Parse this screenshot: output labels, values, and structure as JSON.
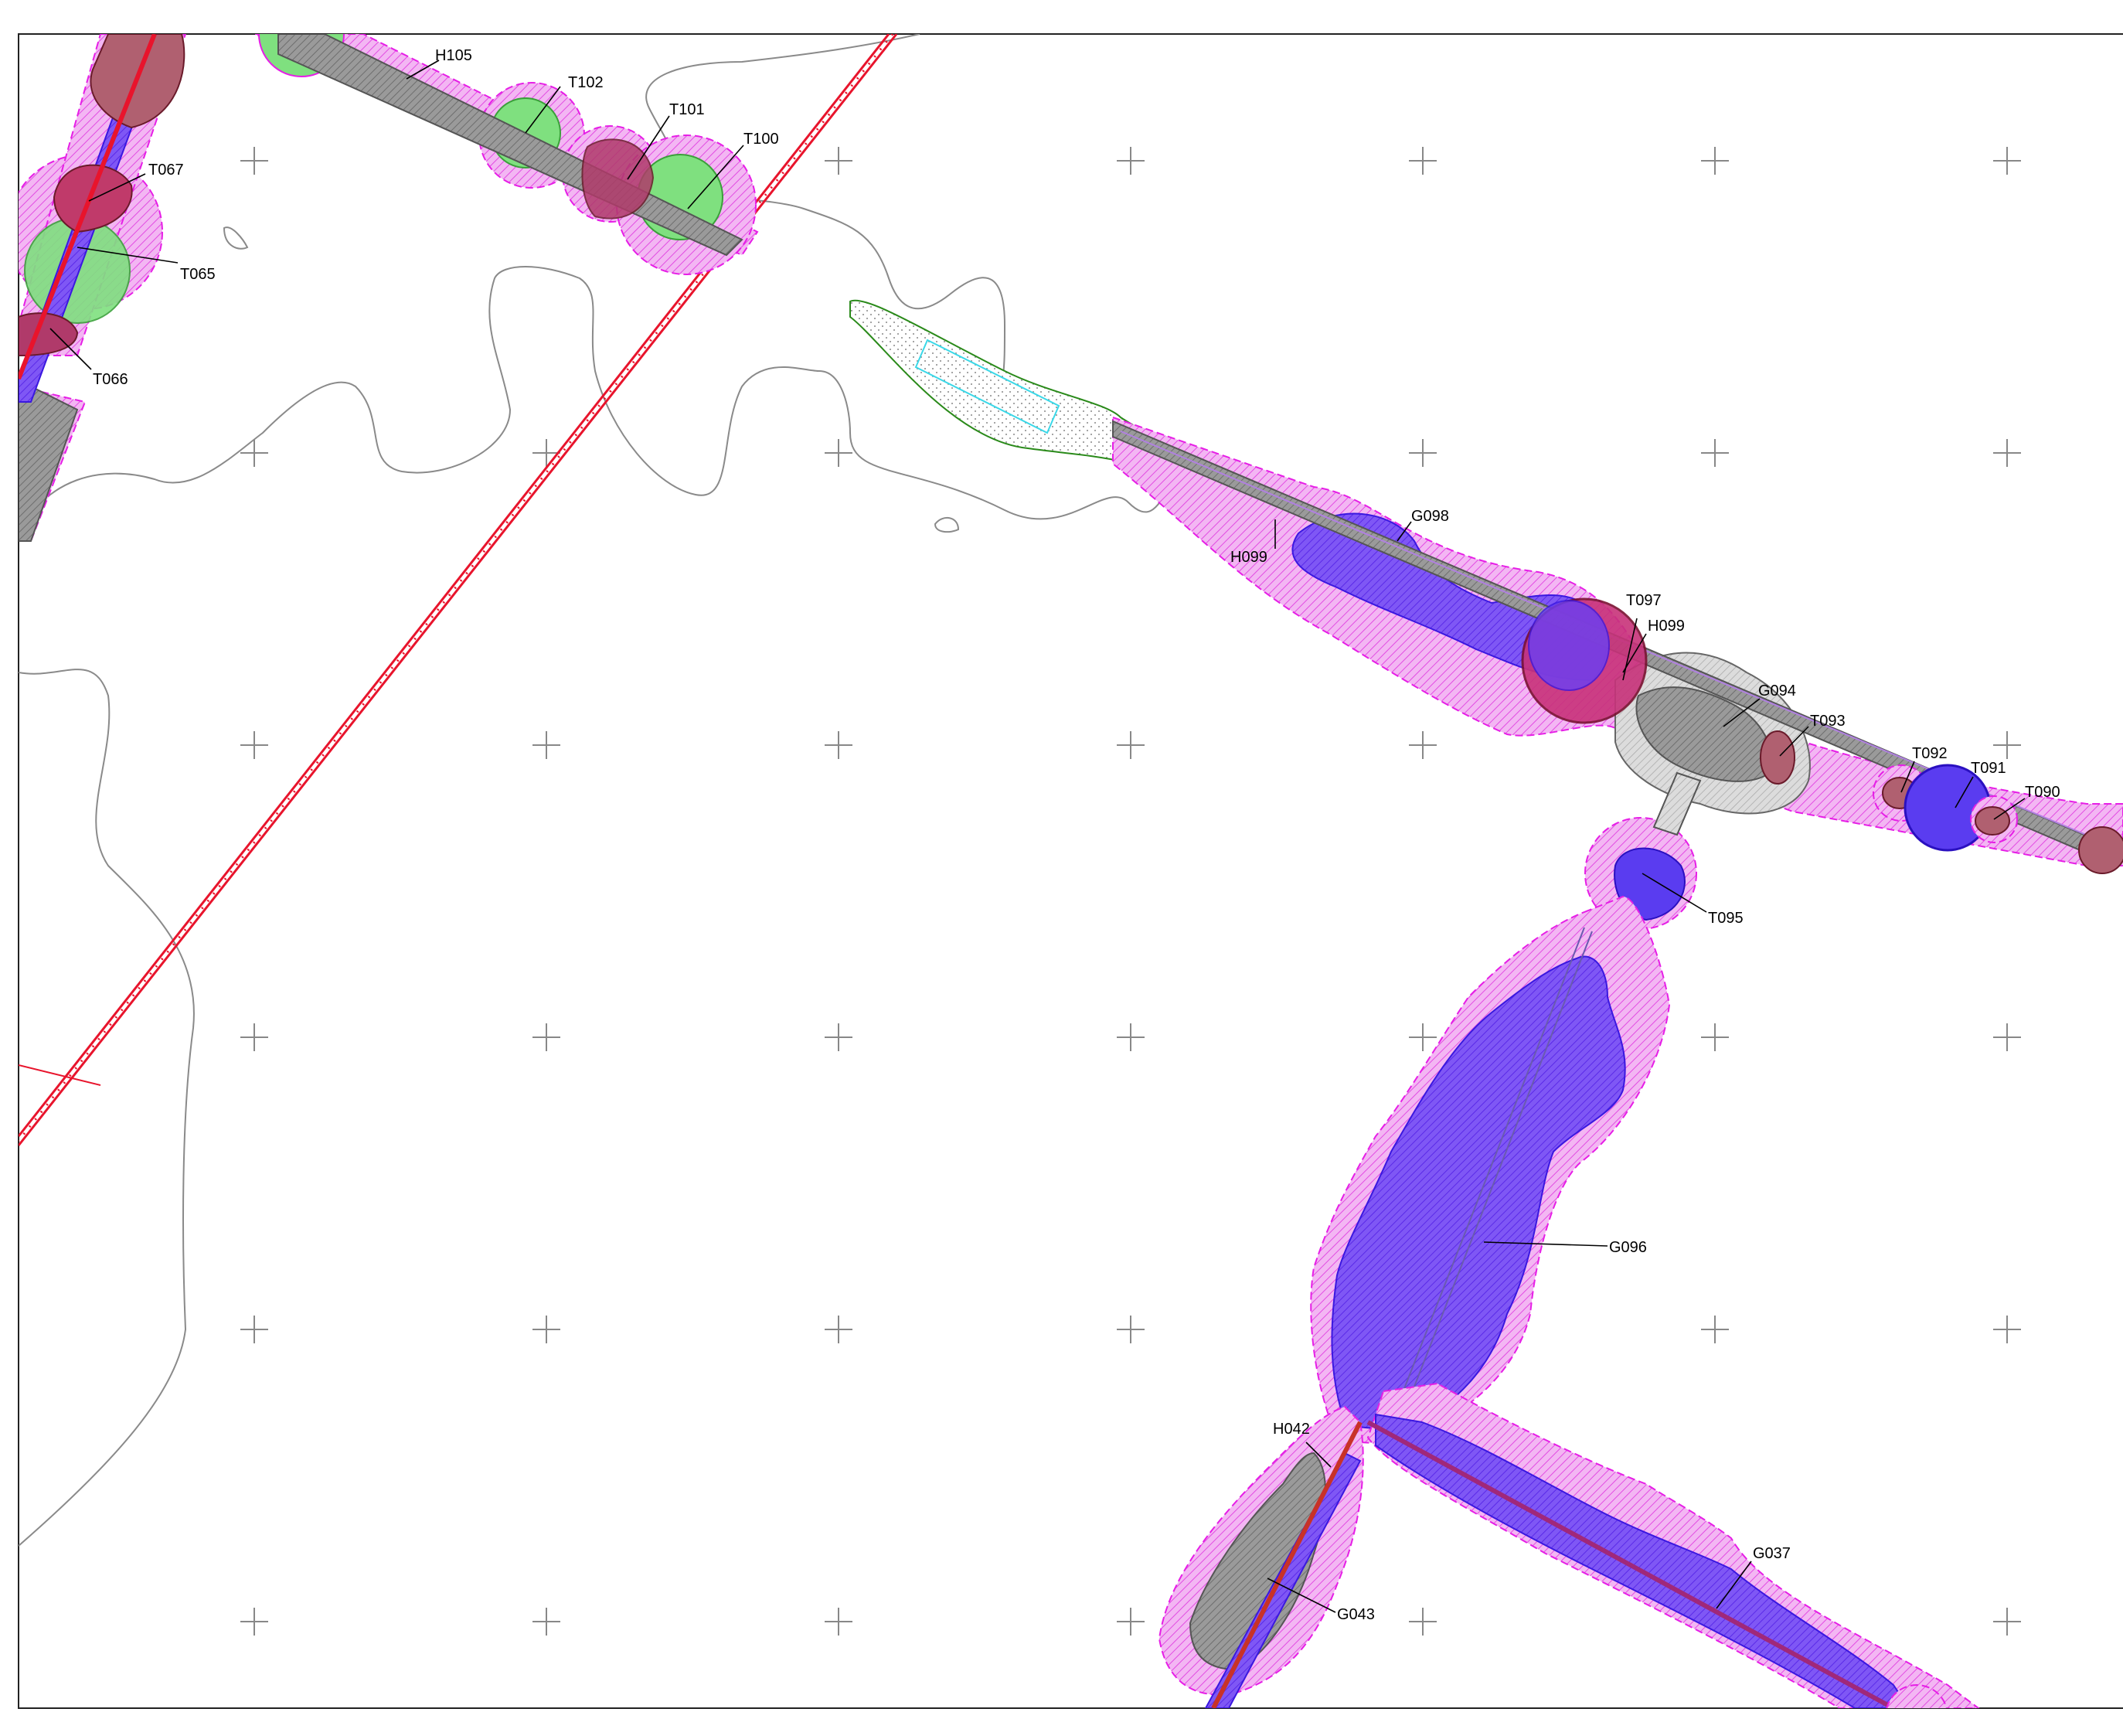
{
  "labels": {
    "h105": "H105",
    "t102": "T102",
    "t101": "T101",
    "t100": "T100",
    "t067": "T067",
    "t065": "T065",
    "t066": "T066",
    "g098": "G098",
    "h099_a": "H099",
    "t097": "T097",
    "h099_b": "H099",
    "g094": "G094",
    "t093": "T093",
    "t092": "T092",
    "t091": "T091",
    "t090": "T090",
    "t095": "T095",
    "g096": "G096",
    "h042": "H042",
    "g043": "G043",
    "g037": "G037"
  },
  "colors": {
    "buffer_magenta": "#e61ee6",
    "blue_fill": "#6a3cf5",
    "green_fill": "#7fe07f",
    "gray_fill": "#8c8c8c",
    "red_line": "#e8142c",
    "maroon_fill": "#b03a56",
    "contour_gray": "#8a8a8a",
    "cyan_outline": "#3ad8e8",
    "green_outline": "#2a8a1a"
  }
}
